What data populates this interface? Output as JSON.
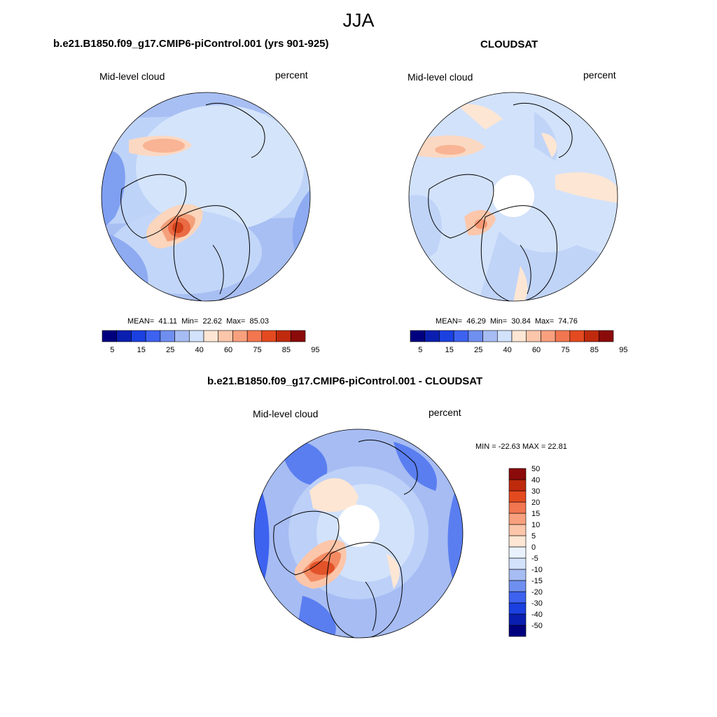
{
  "figure": {
    "season": "JJA"
  },
  "panels": [
    {
      "id": "model",
      "title": "b.e21.B1850.f09_g17.CMIP6-piControl.001 (yrs 901-925)",
      "variable": "Mid-level cloud",
      "units": "percent",
      "mean_label": "MEAN=",
      "mean": "41.11",
      "min_label": "Min=",
      "min": "22.62",
      "max_label": "Max=",
      "max": "85.03"
    },
    {
      "id": "obs",
      "title": "CLOUDSAT",
      "variable": "Mid-level cloud",
      "units": "percent",
      "mean_label": "MEAN=",
      "mean": "46.29",
      "min_label": "Min=",
      "min": "30.84",
      "max_label": "Max=",
      "max": "74.76"
    },
    {
      "id": "diff",
      "title": "b.e21.B1850.f09_g17.CMIP6-piControl.001 - CLOUDSAT",
      "variable": "Mid-level cloud",
      "units": "percent",
      "minmax_text": "MIN = -22.63 MAX =  22.81"
    }
  ],
  "colorbars": {
    "abs": {
      "colors": [
        "#00007f",
        "#0a1fb0",
        "#1a40e0",
        "#3d62f0",
        "#6f8ff0",
        "#a6bcf3",
        "#d2e2fb",
        "#fde6d3",
        "#fcc6aa",
        "#f8a07e",
        "#f27650",
        "#e44a1f",
        "#bf2a0c",
        "#8b0a0a"
      ],
      "tick_labels": [
        "5",
        "15",
        "25",
        "40",
        "60",
        "75",
        "85",
        "95"
      ]
    },
    "diff": {
      "colors": [
        "#00007f",
        "#0a1fb0",
        "#1a40e0",
        "#3d62f0",
        "#6f8ff0",
        "#a6bcf3",
        "#d2e2fb",
        "#e9f1fd",
        "#fde6d3",
        "#fcc6aa",
        "#f8a07e",
        "#f27650",
        "#e44a1f",
        "#bf2a0c",
        "#8b0a0a"
      ],
      "tick_labels": [
        "-50",
        "-40",
        "-30",
        "-20",
        "-15",
        "-10",
        "-5",
        "0",
        "5",
        "10",
        "15",
        "20",
        "30",
        "40",
        "50"
      ]
    }
  }
}
